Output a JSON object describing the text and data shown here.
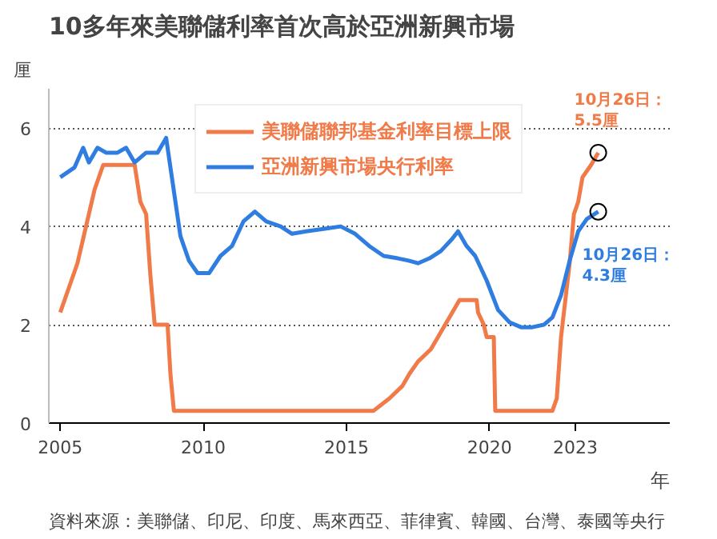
{
  "chart_data": {
    "type": "line",
    "title": "10多年來美聯儲利率首次高於亞洲新興市場",
    "xlabel": "年",
    "ylabel": "厘",
    "xlim": [
      2004.6,
      2026.3
    ],
    "ylim": [
      0,
      6.8
    ],
    "xticks": [
      2005,
      2010,
      2015,
      2020,
      2023
    ],
    "yticks": [
      0,
      2,
      4,
      6
    ],
    "grid": "y",
    "legend": "top",
    "line_style": "solid",
    "marker": "none",
    "series": [
      {
        "name": "美聯儲聯邦基金利率目標上限",
        "color": "#f07a48",
        "x": [
          2005.0,
          2005.3,
          2005.6,
          2005.9,
          2006.2,
          2006.5,
          2007.6,
          2007.8,
          2008.0,
          2008.15,
          2008.3,
          2008.75,
          2008.85,
          2008.97,
          2015.95,
          2016.5,
          2016.95,
          2017.2,
          2017.5,
          2017.95,
          2018.2,
          2018.45,
          2018.7,
          2018.95,
          2019.55,
          2019.6,
          2019.8,
          2019.9,
          2020.15,
          2020.2,
          2022.2,
          2022.35,
          2022.5,
          2022.65,
          2022.8,
          2022.95,
          2023.1,
          2023.25,
          2023.55,
          2023.8
        ],
        "values": [
          2.25,
          2.75,
          3.25,
          4.0,
          4.75,
          5.25,
          5.25,
          4.5,
          4.25,
          3.0,
          2.0,
          2.0,
          1.0,
          0.25,
          0.25,
          0.5,
          0.75,
          1.0,
          1.25,
          1.5,
          1.75,
          2.0,
          2.25,
          2.5,
          2.5,
          2.25,
          2.0,
          1.75,
          1.75,
          0.25,
          0.25,
          0.5,
          1.75,
          2.5,
          3.25,
          4.25,
          4.5,
          5.0,
          5.25,
          5.5
        ]
      },
      {
        "name": "亞洲新興市場央行利率",
        "color": "#2f7de1",
        "x": [
          2005.0,
          2005.5,
          2005.8,
          2006.0,
          2006.3,
          2006.6,
          2007.0,
          2007.3,
          2007.6,
          2008.0,
          2008.4,
          2008.7,
          2008.9,
          2009.2,
          2009.5,
          2009.8,
          2010.2,
          2010.6,
          2011.0,
          2011.4,
          2011.8,
          2012.2,
          2012.7,
          2013.1,
          2013.6,
          2014.2,
          2014.8,
          2015.3,
          2015.8,
          2016.3,
          2016.8,
          2017.2,
          2017.5,
          2017.9,
          2018.3,
          2018.7,
          2018.9,
          2019.2,
          2019.5,
          2019.9,
          2020.3,
          2020.7,
          2021.1,
          2021.5,
          2021.9,
          2022.2,
          2022.5,
          2022.8,
          2023.1,
          2023.4,
          2023.8
        ],
        "values": [
          5.0,
          5.2,
          5.6,
          5.3,
          5.6,
          5.5,
          5.5,
          5.6,
          5.3,
          5.5,
          5.5,
          5.8,
          5.0,
          3.8,
          3.3,
          3.05,
          3.05,
          3.4,
          3.6,
          4.1,
          4.3,
          4.1,
          4.0,
          3.85,
          3.9,
          3.95,
          4.0,
          3.85,
          3.6,
          3.4,
          3.35,
          3.3,
          3.25,
          3.35,
          3.5,
          3.75,
          3.9,
          3.6,
          3.4,
          2.9,
          2.3,
          2.05,
          1.95,
          1.95,
          2.0,
          2.15,
          2.6,
          3.3,
          3.9,
          4.15,
          4.3
        ]
      }
    ],
    "annotations": [
      {
        "text": "10月26日：\n5.5厘",
        "x": 2023.8,
        "y": 5.5
      },
      {
        "text": "10月26日：\n4.3厘",
        "x": 2023.8,
        "y": 4.3
      },
      "資料來源：美聯儲、印尼、印度、馬來西亞、菲律賓、韓國、台灣、泰國等央行"
    ]
  }
}
